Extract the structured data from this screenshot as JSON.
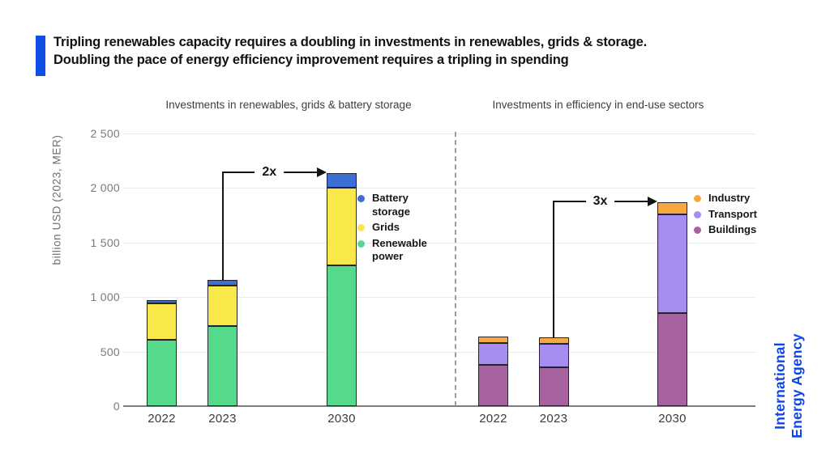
{
  "header": {
    "title_line1": "Tripling renewables capacity requires a doubling in investments in renewables, grids & storage.",
    "title_line2": "Doubling the pace of energy efficiency improvement requires a tripling in spending",
    "accent_color": "#0f4fe6"
  },
  "axis": {
    "ylabel": "billion USD (2023, MER)",
    "ylim": [
      0,
      2500
    ],
    "ticks": [
      {
        "label": "0",
        "value": 0
      },
      {
        "label": "500",
        "value": 500
      },
      {
        "label": "1 000",
        "value": 1000
      },
      {
        "label": "1 500",
        "value": 1500
      },
      {
        "label": "2 000",
        "value": 2000
      },
      {
        "label": "2 500",
        "value": 2500
      }
    ],
    "grid": true
  },
  "chart_data": [
    {
      "type": "bar",
      "subtype": "stacked",
      "title": "Investments in renewables, grids & battery storage",
      "categories": [
        "2022",
        "2023",
        "2030"
      ],
      "series": [
        {
          "name": "Renewable power",
          "color": "#55d98b",
          "values": [
            605,
            735,
            1290
          ]
        },
        {
          "name": "Grids",
          "color": "#f9e84a",
          "values": [
            335,
            370,
            715
          ]
        },
        {
          "name": "Battery storage",
          "color": "#3b6fd4",
          "values": [
            30,
            55,
            135
          ]
        }
      ],
      "annotation": {
        "label": "2x",
        "from_category": "2023",
        "to_category": "2030"
      },
      "legend": [
        {
          "label": "Battery storage",
          "color": "#3b6fd4"
        },
        {
          "label": "Grids",
          "color": "#f9e84a"
        },
        {
          "label": "Renewable power",
          "color": "#55d98b"
        }
      ],
      "legend_position": "right-of-2030-bar"
    },
    {
      "type": "bar",
      "subtype": "stacked",
      "title": "Investments in efficiency in end-use sectors",
      "categories": [
        "2022",
        "2023",
        "2030"
      ],
      "series": [
        {
          "name": "Buildings",
          "color": "#a7639f",
          "values": [
            375,
            355,
            855
          ]
        },
        {
          "name": "Transport",
          "color": "#a88df0",
          "values": [
            205,
            215,
            900
          ]
        },
        {
          "name": "Industry",
          "color": "#f5a93e",
          "values": [
            60,
            60,
            115
          ]
        }
      ],
      "annotation": {
        "label": "3x",
        "from_category": "2023",
        "to_category": "2030"
      },
      "legend": [
        {
          "label": "Industry",
          "color": "#f5a93e"
        },
        {
          "label": "Transport",
          "color": "#a88df0"
        },
        {
          "label": "Buildings",
          "color": "#a7639f"
        }
      ],
      "legend_position": "right-of-2030-bar"
    }
  ],
  "logo": {
    "line1": "International",
    "line2": "Energy Agency",
    "color": "#0c45ea"
  }
}
